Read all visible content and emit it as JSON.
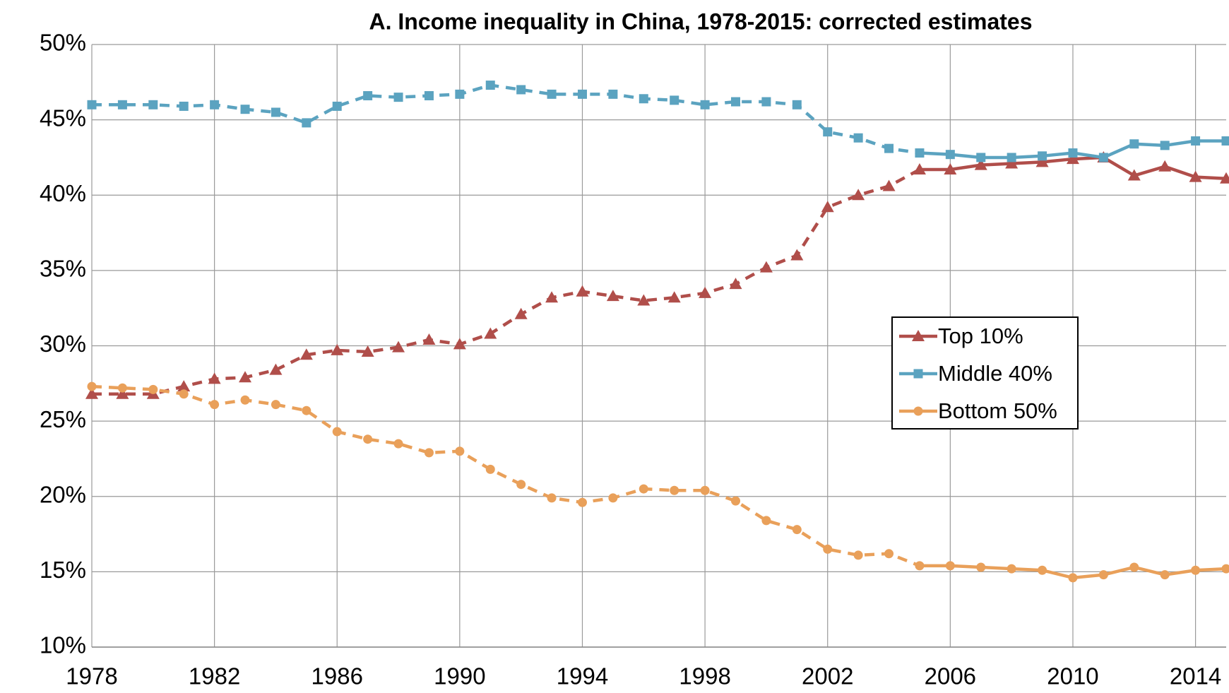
{
  "chart_data": {
    "type": "line",
    "title": "A. Income inequality in China, 1978-2015: corrected estimates",
    "x": [
      1978,
      1979,
      1980,
      1981,
      1982,
      1983,
      1984,
      1985,
      1986,
      1987,
      1988,
      1989,
      1990,
      1991,
      1992,
      1993,
      1994,
      1995,
      1996,
      1997,
      1998,
      1999,
      2000,
      2001,
      2002,
      2003,
      2004,
      2005,
      2006,
      2007,
      2008,
      2009,
      2010,
      2011,
      2012,
      2013,
      2014,
      2015
    ],
    "series": [
      {
        "name": "Top 10%",
        "color": "#b04e4a",
        "marker": "triangle",
        "values": [
          26.8,
          26.8,
          26.8,
          27.3,
          27.8,
          27.9,
          28.4,
          29.4,
          29.7,
          29.6,
          29.9,
          30.4,
          30.1,
          30.8,
          32.1,
          33.2,
          33.6,
          33.3,
          33.0,
          33.2,
          33.5,
          34.1,
          35.2,
          36.0,
          39.2,
          40.0,
          40.6,
          41.7,
          41.7,
          42.0,
          42.1,
          42.2,
          42.4,
          42.5,
          41.3,
          41.9,
          41.2,
          41.1
        ]
      },
      {
        "name": "Middle 40%",
        "color": "#5ba3c0",
        "marker": "square",
        "values": [
          46.0,
          46.0,
          46.0,
          45.9,
          46.0,
          45.7,
          45.5,
          44.8,
          45.9,
          46.6,
          46.5,
          46.6,
          46.7,
          47.3,
          47.0,
          46.7,
          46.7,
          46.7,
          46.4,
          46.3,
          46.0,
          46.2,
          46.2,
          46.0,
          44.2,
          43.8,
          43.1,
          42.8,
          42.7,
          42.5,
          42.5,
          42.6,
          42.8,
          42.5,
          43.4,
          43.3,
          43.6,
          43.6
        ]
      },
      {
        "name": "Bottom 50%",
        "color": "#e9a05a",
        "marker": "circle",
        "values": [
          27.3,
          27.2,
          27.1,
          26.8,
          26.1,
          26.4,
          26.1,
          25.7,
          24.3,
          23.8,
          23.5,
          22.9,
          23.0,
          21.8,
          20.8,
          19.9,
          19.6,
          19.9,
          20.5,
          20.4,
          20.4,
          19.7,
          18.4,
          17.8,
          16.5,
          16.1,
          16.2,
          15.4,
          15.4,
          15.3,
          15.2,
          15.1,
          14.6,
          14.8,
          15.3,
          14.8,
          15.1,
          15.2
        ]
      }
    ],
    "dashed_until": 2005,
    "xlim": [
      1978,
      2015
    ],
    "xticks": [
      1978,
      1982,
      1986,
      1990,
      1994,
      1998,
      2002,
      2006,
      2010,
      2014
    ],
    "ylim": [
      10,
      50
    ],
    "yticks": [
      {
        "value": 10,
        "label": "10%"
      },
      {
        "value": 15,
        "label": "15%"
      },
      {
        "value": 20,
        "label": "20%"
      },
      {
        "value": 25,
        "label": "25%"
      },
      {
        "value": 30,
        "label": "30%"
      },
      {
        "value": 35,
        "label": "35%"
      },
      {
        "value": 40,
        "label": "40%"
      },
      {
        "value": 45,
        "label": "45%"
      },
      {
        "value": 50,
        "label": "50%"
      }
    ],
    "grid": true,
    "legend": "right"
  }
}
